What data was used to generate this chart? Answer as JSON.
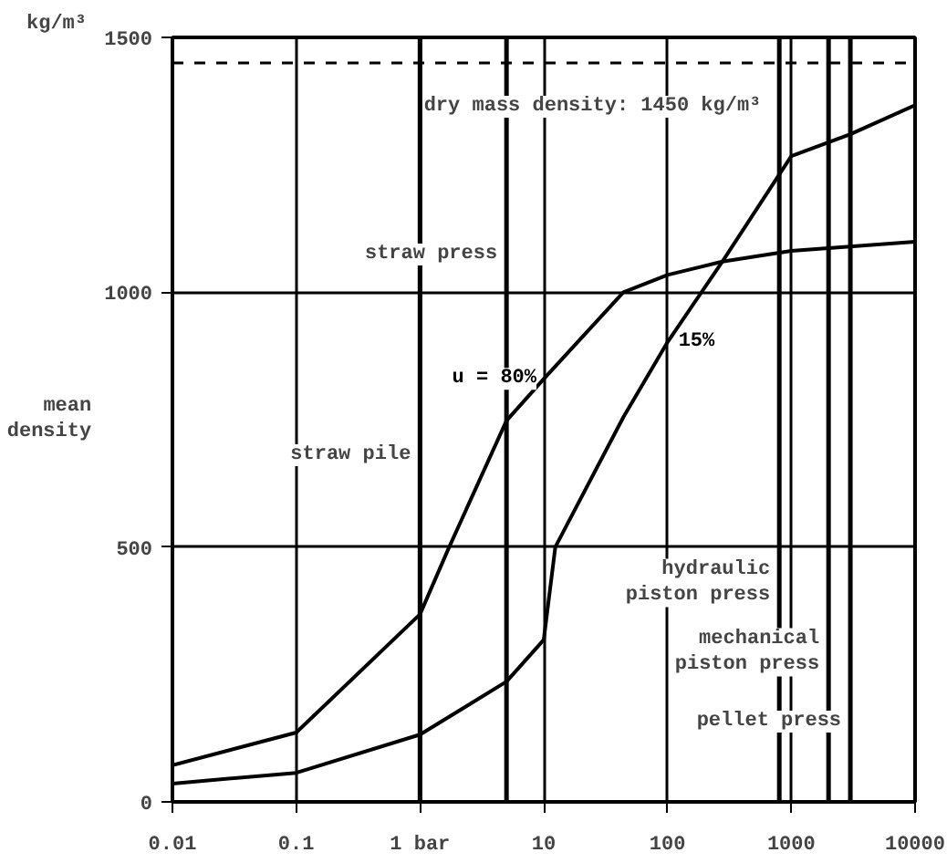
{
  "chart_data": {
    "type": "line",
    "ylabel": "mean density",
    "annotations": [
      "kg/m³"
    ],
    "x": [
      0.01,
      0.1,
      1,
      1.7,
      5,
      10,
      44,
      100,
      277,
      1000,
      10000
    ],
    "series": [
      {
        "name": "u = 80%",
        "color": "#000000",
        "values": [
          72,
          136,
          368,
          497,
          748,
          830,
          1000,
          1034,
          1060,
          1081,
          1099
        ]
      },
      {
        "name": "15%",
        "color": "#000000",
        "x": [
          0.01,
          0.1,
          1,
          5,
          10,
          12.4,
          44,
          100,
          277,
          1000,
          3000,
          10000
        ],
        "values": [
          36,
          57,
          132,
          236,
          318,
          500,
          755,
          902,
          1060,
          1267,
          1310,
          1367
        ]
      }
    ],
    "log": "x",
    "xlim": [
      0.01,
      10000
    ],
    "ylim": [
      0,
      1500
    ],
    "xticks": [
      0.01,
      0.1,
      {
        "value": 1,
        "label": "1 bar"
      },
      10,
      100,
      1000,
      10000
    ],
    "yticks": [
      0,
      500,
      1000,
      1500
    ],
    "grid": true,
    "line_style": "solid",
    "marker": "none",
    "ref_lines": [
      {
        "axis": "y",
        "value": 1450,
        "label": "dry mass density: 1450 kg/m³",
        "line_style": "dashed"
      },
      {
        "axis": "x",
        "value": 1,
        "label": "straw pile"
      },
      {
        "axis": "x",
        "value": 5,
        "label": "straw press"
      },
      {
        "axis": "x",
        "value": 800,
        "label": "hydraulic piston press"
      },
      {
        "axis": "x",
        "value": 2000,
        "label": "mechanical piston press"
      },
      {
        "axis": "x",
        "value": 3000,
        "label": "pellet press"
      }
    ]
  }
}
